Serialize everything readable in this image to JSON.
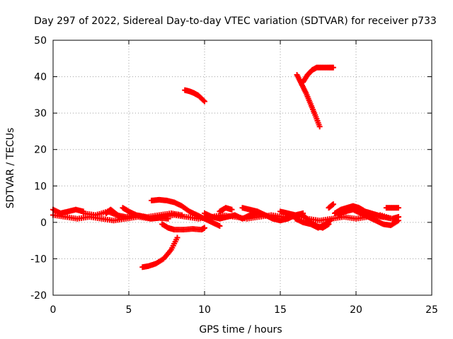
{
  "chart_data": {
    "type": "scatter",
    "title": "Day 297 of 2022, Sidereal Day-to-day VTEC variation (SDTVAR) for receiver p733",
    "xlabel": "GPS time / hours",
    "ylabel": "SDTVAR / TECUs",
    "xlim": [
      0,
      25
    ],
    "ylim": [
      -20,
      50
    ],
    "x_ticks": [
      0,
      5,
      10,
      15,
      20,
      25
    ],
    "y_ticks": [
      -20,
      -10,
      0,
      10,
      20,
      30,
      40,
      50
    ],
    "x_tick_labels": [
      "0",
      "5",
      "10",
      "15",
      "20",
      "25"
    ],
    "y_tick_labels": [
      "-20",
      "-10",
      "0",
      "10",
      "20",
      "30",
      "40",
      "50"
    ],
    "grid": true,
    "marker": "plus",
    "color": "#ff0000",
    "series": [
      {
        "x": [
          0.0,
          0.5,
          1.0,
          1.5,
          2.0
        ],
        "y": [
          3.5,
          2.5,
          3.0,
          3.5,
          3.0
        ]
      },
      {
        "x": [
          0.0,
          0.8,
          1.6,
          2.4,
          3.2,
          4.0,
          4.8,
          5.6,
          6.4,
          7.2,
          8.0,
          8.8,
          9.6,
          10.4,
          11.2,
          12.0,
          12.8,
          13.6,
          14.4,
          15.2,
          16.0,
          16.8,
          17.6,
          18.4,
          19.2,
          20.0,
          20.8,
          21.6,
          22.4,
          22.8
        ],
        "y": [
          2.0,
          1.5,
          1.0,
          1.5,
          1.0,
          0.5,
          1.0,
          1.5,
          1.0,
          1.5,
          2.0,
          1.5,
          1.0,
          1.5,
          2.0,
          1.5,
          1.0,
          1.5,
          2.0,
          1.5,
          2.0,
          1.0,
          0.5,
          1.0,
          1.5,
          1.0,
          1.5,
          2.0,
          1.0,
          1.5
        ]
      },
      {
        "x": [
          2.0,
          2.8,
          3.6,
          4.2,
          4.8,
          5.5,
          6.2,
          7.0,
          7.8,
          8.5
        ],
        "y": [
          2.5,
          2.0,
          3.0,
          2.0,
          1.5,
          2.0,
          1.5,
          2.0,
          2.5,
          2.0
        ]
      },
      {
        "x": [
          3.5,
          3.8,
          4.1,
          4.4
        ],
        "y": [
          2.5,
          3.5,
          2.5,
          1.5
        ]
      },
      {
        "x": [
          4.6,
          5.0,
          5.5,
          6.0,
          6.5,
          7.0,
          7.6
        ],
        "y": [
          4.0,
          3.0,
          2.0,
          1.5,
          1.0,
          1.2,
          1.0
        ]
      },
      {
        "x": [
          6.5,
          7.0,
          7.5,
          8.0,
          8.5,
          9.0,
          9.5,
          10.0,
          10.5,
          11.0
        ],
        "y": [
          6.0,
          6.2,
          6.0,
          5.5,
          4.5,
          3.0,
          2.0,
          1.0,
          0.0,
          -1.0
        ]
      },
      {
        "x": [
          7.2,
          7.6,
          8.0,
          8.6,
          9.2,
          9.8,
          10.0
        ],
        "y": [
          -0.5,
          -1.5,
          -2.0,
          -2.0,
          -1.8,
          -2.0,
          -1.5
        ]
      },
      {
        "x": [
          5.9,
          6.3,
          6.8,
          7.3,
          7.8,
          8.2
        ],
        "y": [
          -12.3,
          -12.0,
          -11.3,
          -10.0,
          -7.5,
          -4.2
        ]
      },
      {
        "x": [
          8.7,
          9.0,
          9.3,
          9.6,
          10.0
        ],
        "y": [
          36.3,
          36.0,
          35.5,
          34.8,
          33.2
        ]
      },
      {
        "x": [
          10.0,
          10.5,
          11.0,
          11.5,
          12.0,
          12.5,
          13.0,
          13.5,
          14.0
        ],
        "y": [
          2.5,
          1.5,
          1.0,
          1.5,
          2.0,
          1.0,
          2.0,
          2.5,
          2.0
        ]
      },
      {
        "x": [
          11.0,
          11.4,
          11.8
        ],
        "y": [
          3.0,
          4.0,
          3.5
        ]
      },
      {
        "x": [
          12.5,
          13.0,
          13.5,
          14.0,
          14.5,
          15.0,
          15.5,
          16.0,
          16.5
        ],
        "y": [
          4.0,
          3.5,
          3.0,
          2.0,
          1.0,
          0.5,
          1.0,
          2.0,
          2.5
        ]
      },
      {
        "x": [
          15.0,
          15.5,
          16.0,
          16.5,
          17.0,
          17.4,
          17.8,
          18.2
        ],
        "y": [
          3.0,
          2.5,
          2.0,
          2.0,
          0.0,
          -1.0,
          -1.5,
          -0.5
        ]
      },
      {
        "x": [
          16.0,
          16.5,
          17.0,
          17.5,
          18.0,
          18.3
        ],
        "y": [
          1.0,
          0.0,
          -0.5,
          -1.5,
          -0.5,
          0.5
        ]
      },
      {
        "x": [
          16.1,
          16.4,
          16.7,
          17.0,
          17.3,
          17.6
        ],
        "y": [
          40.5,
          38.0,
          35.5,
          32.5,
          29.5,
          26.3
        ]
      },
      {
        "x": [
          16.5,
          16.8,
          17.1,
          17.4,
          17.8,
          18.2,
          18.5
        ],
        "y": [
          38.5,
          40.5,
          41.8,
          42.5,
          42.5,
          42.5,
          42.5
        ]
      },
      {
        "x": [
          18.2,
          18.5
        ],
        "y": [
          4.0,
          5.0
        ]
      },
      {
        "x": [
          18.6,
          19.0,
          19.4,
          19.8,
          20.2,
          20.6,
          21.0,
          21.4,
          21.8
        ],
        "y": [
          2.5,
          3.5,
          4.0,
          4.5,
          4.0,
          3.0,
          2.5,
          2.0,
          1.5
        ]
      },
      {
        "x": [
          18.8,
          19.3,
          19.8,
          20.3,
          20.8,
          21.3,
          21.8,
          22.3,
          22.8
        ],
        "y": [
          2.0,
          3.0,
          3.5,
          2.5,
          1.5,
          0.5,
          -0.5,
          -0.8,
          0.5
        ]
      },
      {
        "x": [
          20.3,
          21.0,
          21.7,
          22.4,
          22.8
        ],
        "y": [
          3.0,
          2.0,
          1.5,
          1.0,
          1.5
        ]
      },
      {
        "x": [
          22.0,
          22.4,
          22.8
        ],
        "y": [
          4.0,
          4.0,
          4.0
        ]
      }
    ]
  }
}
